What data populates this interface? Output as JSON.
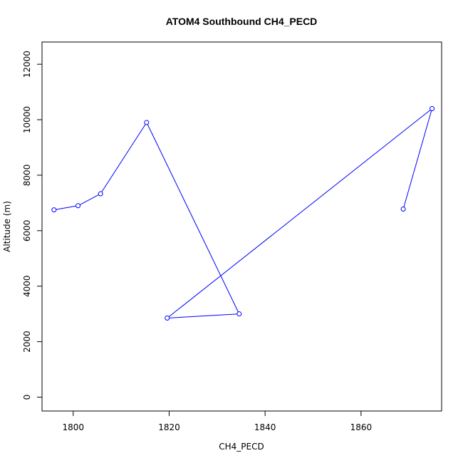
{
  "chart_data": {
    "type": "line",
    "title": "ATOM4 Southbound CH4_PECD",
    "xlabel": "CH4_PECD",
    "ylabel": "Altitude (m)",
    "xlim": [
      1793.5,
      1876.8
    ],
    "ylim": [
      -500,
      12800
    ],
    "x_ticks": [
      1800,
      1820,
      1840,
      1860
    ],
    "y_ticks": [
      0,
      2000,
      4000,
      6000,
      8000,
      10000,
      12000
    ],
    "grid": false,
    "series": [
      {
        "color": "#0000ff",
        "marker": "open-circle",
        "x": [
          1796.0,
          1801.0,
          1805.7,
          1815.3,
          1834.6,
          1819.6,
          1874.8,
          1868.8
        ],
        "y": [
          6750,
          6900,
          7330,
          9900,
          3000,
          2850,
          10400,
          6780
        ]
      }
    ]
  }
}
